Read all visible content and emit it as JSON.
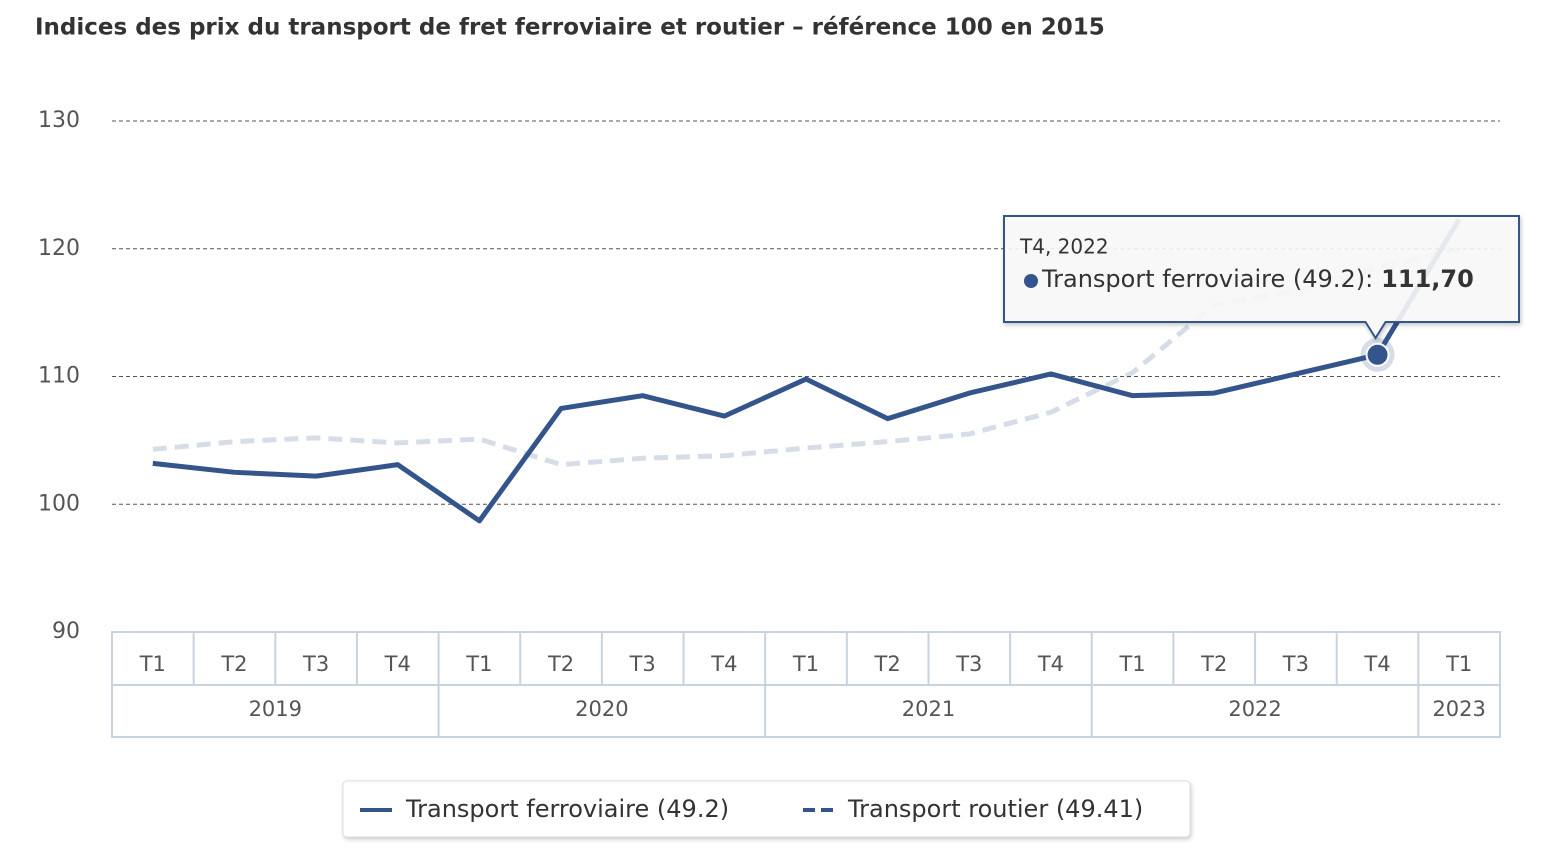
{
  "chart_data": {
    "type": "line",
    "title": "Indices des prix du transport de fret ferroviaire et routier – référence 100 en 2015",
    "categories": [
      "T1",
      "T2",
      "T3",
      "T4",
      "T1",
      "T2",
      "T3",
      "T4",
      "T1",
      "T2",
      "T3",
      "T4",
      "T1",
      "T2",
      "T3",
      "T4",
      "T1"
    ],
    "year_labels": [
      "2019",
      null,
      null,
      null,
      "2020",
      null,
      null,
      null,
      "2021",
      null,
      null,
      null,
      "2022",
      null,
      null,
      null,
      "2023"
    ],
    "series": [
      {
        "name": "Transport ferroviaire (49.2)",
        "color": "#34558b",
        "dash": false,
        "opacity": 1,
        "values": [
          103.2,
          102.5,
          102.2,
          103.1,
          98.7,
          107.5,
          108.5,
          106.9,
          109.8,
          106.7,
          108.7,
          110.2,
          108.5,
          108.7,
          110.2,
          111.7,
          122.3
        ]
      },
      {
        "name": "Transport routier (49.41)",
        "color": "#34558b",
        "dash": true,
        "opacity": 0.2,
        "values": [
          104.3,
          104.9,
          105.2,
          104.8,
          105.1,
          103.1,
          103.6,
          103.8,
          104.4,
          104.9,
          105.5,
          107.2,
          110.3,
          115.6,
          116.7,
          118.5,
          120.0
        ]
      }
    ],
    "ylim": [
      90,
      130
    ],
    "yticks": [
      90,
      100,
      110,
      120,
      130
    ],
    "grid": true,
    "legend": "bottom",
    "tooltip": {
      "title": "T4, 2022",
      "label": "Transport ferroviaire (49.2):",
      "value": 111.7,
      "value_label": "111,70"
    }
  }
}
